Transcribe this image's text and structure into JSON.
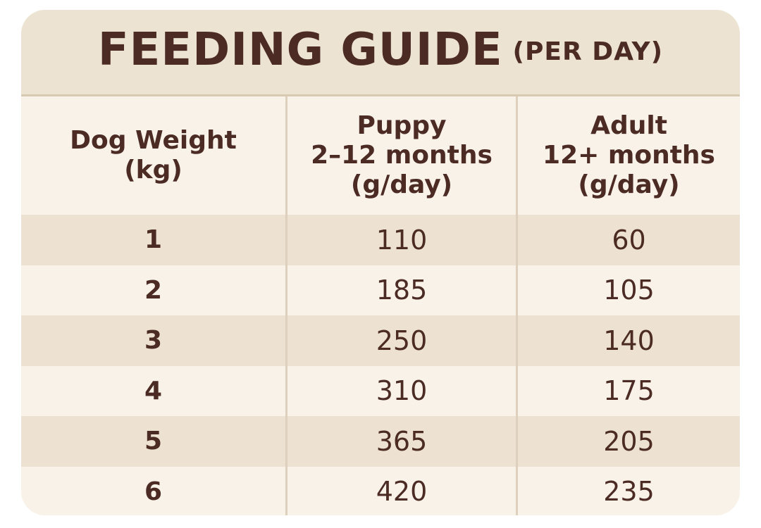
{
  "title": {
    "main": "FEEDING GUIDE",
    "sub": "(PER DAY)"
  },
  "columns": [
    {
      "lines": [
        "Dog Weight",
        "(kg)"
      ]
    },
    {
      "lines": [
        "Puppy",
        "2–12 months",
        "(g/day)"
      ]
    },
    {
      "lines": [
        "Adult",
        "12+ months",
        "(g/day)"
      ]
    }
  ],
  "rows": [
    {
      "weight": "1",
      "puppy": "110",
      "adult": "60"
    },
    {
      "weight": "2",
      "puppy": "185",
      "adult": "105"
    },
    {
      "weight": "3",
      "puppy": "250",
      "adult": "140"
    },
    {
      "weight": "4",
      "puppy": "310",
      "adult": "175"
    },
    {
      "weight": "5",
      "puppy": "365",
      "adult": "205"
    },
    {
      "weight": "6",
      "puppy": "420",
      "adult": "235"
    }
  ],
  "colors": {
    "text": "#4b2b24",
    "title_band": "#ede3d3",
    "row_shade": "#ede2d1",
    "row_light": "#f8f2e9"
  }
}
